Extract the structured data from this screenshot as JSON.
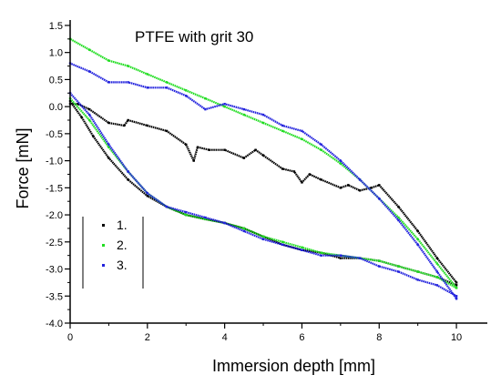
{
  "chart_data": {
    "type": "scatter",
    "title": "PTFE with grit 30",
    "xlabel": "Immersion depth [mm]",
    "ylabel": "Force [mN]",
    "xlim": [
      0,
      10.8
    ],
    "ylim": [
      -4.0,
      1.6
    ],
    "x_ticks": [
      0,
      2,
      4,
      6,
      8,
      10
    ],
    "y_ticks": [
      1.5,
      1.0,
      0.5,
      0.0,
      -0.5,
      -1.0,
      -1.5,
      -2.0,
      -2.5,
      -3.0,
      -3.5,
      -4.0
    ],
    "x_tick_labels": [
      "0",
      "2",
      "4",
      "6",
      "8",
      "10"
    ],
    "y_tick_labels": [
      "1.5",
      "1.0",
      "0.5",
      "0.0",
      "-0.5",
      "-1.0",
      "-1.5",
      "-2.0",
      "-2.5",
      "-3.0",
      "-3.5",
      "-4.0"
    ],
    "legend_position": "lower-left",
    "legend": [
      "1.",
      "2.",
      "3."
    ],
    "series": [
      {
        "name": "1.",
        "color": "#000000",
        "x": [
          0,
          0.3,
          0.6,
          1.0,
          1.5,
          2.0,
          2.5,
          3.0,
          3.5,
          4.0,
          4.5,
          5.0,
          5.5,
          6.0,
          6.5,
          7.0,
          7.5,
          8.0,
          8.5,
          9.0,
          9.5,
          10.0,
          10.0,
          9.5,
          9.0,
          8.5,
          8.0,
          7.8,
          7.5,
          7.2,
          7.0,
          6.5,
          6.2,
          6.0,
          5.8,
          5.5,
          5.0,
          4.8,
          4.5,
          4.0,
          3.6,
          3.3,
          3.2,
          3.0,
          2.5,
          2.0,
          1.5,
          1.4,
          1.0,
          0.5,
          0.2,
          0.0
        ],
        "y": [
          0.1,
          -0.2,
          -0.55,
          -0.95,
          -1.35,
          -1.65,
          -1.85,
          -2.0,
          -2.08,
          -2.15,
          -2.25,
          -2.4,
          -2.55,
          -2.65,
          -2.7,
          -2.8,
          -2.8,
          -2.85,
          -2.95,
          -3.05,
          -3.15,
          -3.3,
          -3.25,
          -2.8,
          -2.3,
          -1.85,
          -1.45,
          -1.5,
          -1.55,
          -1.45,
          -1.5,
          -1.35,
          -1.25,
          -1.4,
          -1.2,
          -1.15,
          -0.9,
          -0.8,
          -0.95,
          -0.8,
          -0.8,
          -0.75,
          -1.0,
          -0.7,
          -0.45,
          -0.35,
          -0.25,
          -0.35,
          -0.3,
          -0.05,
          0.05,
          0.05
        ]
      },
      {
        "name": "2.",
        "color": "#22dd22",
        "x": [
          0,
          0.5,
          1.0,
          1.5,
          2.0,
          2.5,
          3.0,
          3.5,
          4.0,
          4.5,
          5.0,
          5.5,
          6.0,
          6.5,
          7.0,
          7.5,
          8.0,
          8.5,
          9.0,
          9.5,
          10.0,
          10.0,
          9.5,
          9.0,
          8.5,
          8.0,
          7.5,
          7.0,
          6.5,
          6.0,
          5.5,
          5.0,
          4.5,
          4.0,
          3.5,
          3.0,
          2.5,
          2.0,
          1.5,
          1.0,
          0.5,
          0.0
        ],
        "y": [
          0.15,
          -0.25,
          -0.75,
          -1.2,
          -1.6,
          -1.85,
          -2.0,
          -2.08,
          -2.15,
          -2.25,
          -2.4,
          -2.5,
          -2.6,
          -2.7,
          -2.75,
          -2.8,
          -2.85,
          -2.95,
          -3.05,
          -3.15,
          -3.35,
          -3.35,
          -2.9,
          -2.45,
          -2.05,
          -1.7,
          -1.35,
          -1.05,
          -0.8,
          -0.6,
          -0.45,
          -0.3,
          -0.15,
          0.0,
          0.15,
          0.3,
          0.45,
          0.6,
          0.75,
          0.85,
          1.05,
          1.25
        ]
      },
      {
        "name": "3.",
        "color": "#2222dd",
        "x": [
          0,
          0.5,
          1.0,
          1.5,
          2.0,
          2.5,
          3.0,
          3.5,
          4.0,
          4.5,
          5.0,
          5.5,
          6.0,
          6.5,
          7.0,
          7.5,
          8.0,
          8.5,
          9.0,
          9.5,
          10.0,
          10.0,
          9.5,
          9.0,
          8.5,
          8.0,
          7.5,
          7.0,
          6.5,
          6.0,
          5.5,
          5.0,
          4.5,
          4.0,
          3.5,
          3.0,
          2.5,
          2.0,
          1.5,
          1.0,
          0.5,
          0.0
        ],
        "y": [
          0.25,
          -0.15,
          -0.7,
          -1.2,
          -1.6,
          -1.85,
          -1.95,
          -2.05,
          -2.15,
          -2.3,
          -2.45,
          -2.55,
          -2.65,
          -2.75,
          -2.75,
          -2.8,
          -2.95,
          -3.05,
          -3.2,
          -3.3,
          -3.5,
          -3.55,
          -3.05,
          -2.55,
          -2.1,
          -1.7,
          -1.35,
          -1.0,
          -0.7,
          -0.45,
          -0.35,
          -0.15,
          -0.05,
          0.05,
          -0.05,
          0.2,
          0.35,
          0.35,
          0.45,
          0.45,
          0.65,
          0.8
        ]
      }
    ]
  }
}
